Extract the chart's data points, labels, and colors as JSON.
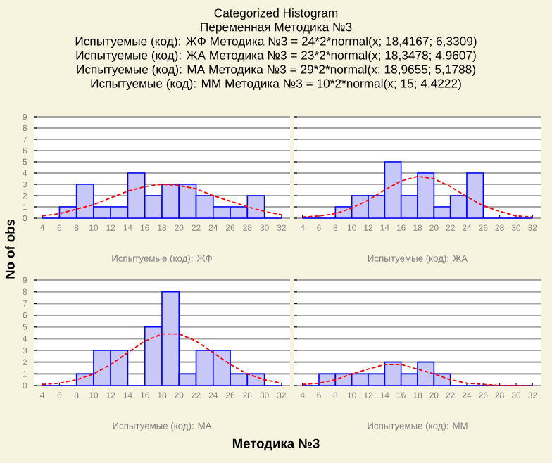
{
  "chart_data": [
    {
      "type": "histogram",
      "title": "Categorized Histogram",
      "subtitle": "Переменная Методика №3",
      "ylabel": "No of obs",
      "annotations": [
        "Испытуемые (код): ЖФ Методика №3 = 24*2*normal(x; 18,4167; 6,3309)",
        "Испытуемые (код): ЖА Методика №3 = 23*2*normal(x; 18,3478; 4,9607)",
        "Испытуемые (код): МА Методика №3 = 29*2*normal(x; 18,9655; 5,1788)",
        "Испытуемые (код): ММ Методика №3 = 10*2*normal(x; 15; 4,4222)",
        "Методика №3"
      ],
      "xlabel": "Испытуемые (код): ЖФ",
      "xlim": [
        3,
        33
      ],
      "xticks": [
        4,
        6,
        8,
        10,
        12,
        14,
        16,
        18,
        20,
        22,
        24,
        26,
        28,
        30,
        32
      ],
      "ylim": [
        0,
        9
      ],
      "yticks": [
        0,
        1,
        2,
        3,
        4,
        5,
        6,
        7,
        8,
        9
      ],
      "grid": "y",
      "series": [
        {
          "color": "#c8c8f8",
          "bins": [
            4,
            6,
            8,
            10,
            12,
            14,
            16,
            18,
            20,
            22,
            24,
            26,
            28,
            30,
            32
          ],
          "values": [
            0,
            1,
            3,
            1,
            1,
            4,
            2,
            3,
            3,
            2,
            1,
            1,
            2,
            0
          ]
        },
        {
          "type": "line",
          "color": "#ff0000",
          "line_style": "dashed",
          "x": [
            4,
            6,
            8,
            10,
            12,
            14,
            16,
            18,
            20,
            22,
            24,
            26,
            28,
            30,
            32
          ],
          "values": [
            0.2,
            0.4,
            0.8,
            1.2,
            1.8,
            2.4,
            2.8,
            3.0,
            2.9,
            2.6,
            2.0,
            1.5,
            1.0,
            0.6,
            0.3
          ]
        }
      ]
    },
    {
      "type": "histogram",
      "xlabel": "Испытуемые (код): ЖА",
      "xlim": [
        3,
        33
      ],
      "xticks": [
        4,
        6,
        8,
        10,
        12,
        14,
        16,
        18,
        20,
        22,
        24,
        26,
        28,
        30,
        32
      ],
      "ylim": [
        0,
        9
      ],
      "yticks": [
        0,
        1,
        2,
        3,
        4,
        5,
        6,
        7,
        8,
        9
      ],
      "grid": "y",
      "tick_labels": "x",
      "series": [
        {
          "color": "#c8c8f8",
          "bins": [
            4,
            6,
            8,
            10,
            12,
            14,
            16,
            18,
            20,
            22,
            24,
            26,
            28,
            30,
            32
          ],
          "values": [
            0,
            0,
            1,
            2,
            2,
            5,
            2,
            4,
            1,
            2,
            4,
            0,
            0,
            0
          ]
        },
        {
          "type": "line",
          "color": "#ff0000",
          "line_style": "dashed",
          "x": [
            4,
            6,
            8,
            10,
            12,
            14,
            16,
            18,
            20,
            22,
            24,
            26,
            28,
            30,
            32
          ],
          "values": [
            0.1,
            0.2,
            0.4,
            0.9,
            1.6,
            2.5,
            3.3,
            3.7,
            3.5,
            2.8,
            1.9,
            1.1,
            0.6,
            0.2,
            0.1
          ]
        }
      ]
    },
    {
      "type": "histogram",
      "xlabel": "Испытуемые (код): МА",
      "xlim": [
        3,
        33
      ],
      "xticks": [
        4,
        6,
        8,
        10,
        12,
        14,
        16,
        18,
        20,
        22,
        24,
        26,
        28,
        30,
        32
      ],
      "ylim": [
        0,
        9
      ],
      "yticks": [
        0,
        1,
        2,
        3,
        4,
        5,
        6,
        7,
        8,
        9
      ],
      "grid": "y",
      "series": [
        {
          "color": "#c8c8f8",
          "bins": [
            4,
            6,
            8,
            10,
            12,
            14,
            16,
            18,
            20,
            22,
            24,
            26,
            28,
            30,
            32
          ],
          "values": [
            0,
            0,
            1,
            3,
            3,
            0,
            5,
            8,
            1,
            3,
            3,
            1,
            1,
            0
          ]
        },
        {
          "type": "line",
          "color": "#ff0000",
          "line_style": "dashed",
          "x": [
            4,
            6,
            8,
            10,
            12,
            14,
            16,
            18,
            20,
            22,
            24,
            26,
            28,
            30,
            32
          ],
          "values": [
            0.1,
            0.2,
            0.5,
            1.0,
            1.8,
            2.8,
            3.8,
            4.4,
            4.4,
            3.8,
            2.8,
            1.8,
            1.0,
            0.5,
            0.2
          ]
        }
      ]
    },
    {
      "type": "histogram",
      "xlabel": "Испытуемые (код): ММ",
      "xlim": [
        3,
        33
      ],
      "xticks": [
        4,
        6,
        8,
        10,
        12,
        14,
        16,
        18,
        20,
        22,
        24,
        26,
        28,
        30,
        32
      ],
      "ylim": [
        0,
        9
      ],
      "yticks": [
        0,
        1,
        2,
        3,
        4,
        5,
        6,
        7,
        8,
        9
      ],
      "grid": "y",
      "tick_labels": "x",
      "series": [
        {
          "color": "#c8c8f8",
          "bins": [
            4,
            6,
            8,
            10,
            12,
            14,
            16,
            18,
            20,
            22,
            24,
            26,
            28,
            30,
            32
          ],
          "values": [
            0,
            1,
            1,
            1,
            1,
            2,
            1,
            2,
            1,
            0,
            0,
            0,
            0,
            0
          ]
        },
        {
          "type": "line",
          "color": "#ff0000",
          "line_style": "dashed",
          "x": [
            4,
            6,
            8,
            10,
            12,
            14,
            16,
            18,
            20,
            22,
            24,
            26,
            28,
            30,
            32
          ],
          "values": [
            0.1,
            0.2,
            0.5,
            1.0,
            1.4,
            1.8,
            1.8,
            1.4,
            1.0,
            0.5,
            0.2,
            0.1,
            0.0,
            0.0,
            0.0
          ]
        }
      ]
    }
  ]
}
